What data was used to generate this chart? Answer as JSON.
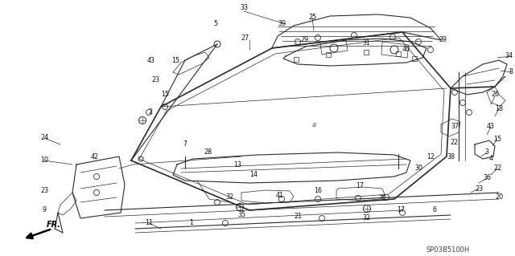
{
  "bg_color": "#f5f5f0",
  "fig_width": 6.4,
  "fig_height": 3.19,
  "dpi": 100,
  "diagram_code": "SP03B5100H",
  "line_color": "#2a2a2a",
  "label_fontsize": 5.8,
  "label_color": "#111111"
}
